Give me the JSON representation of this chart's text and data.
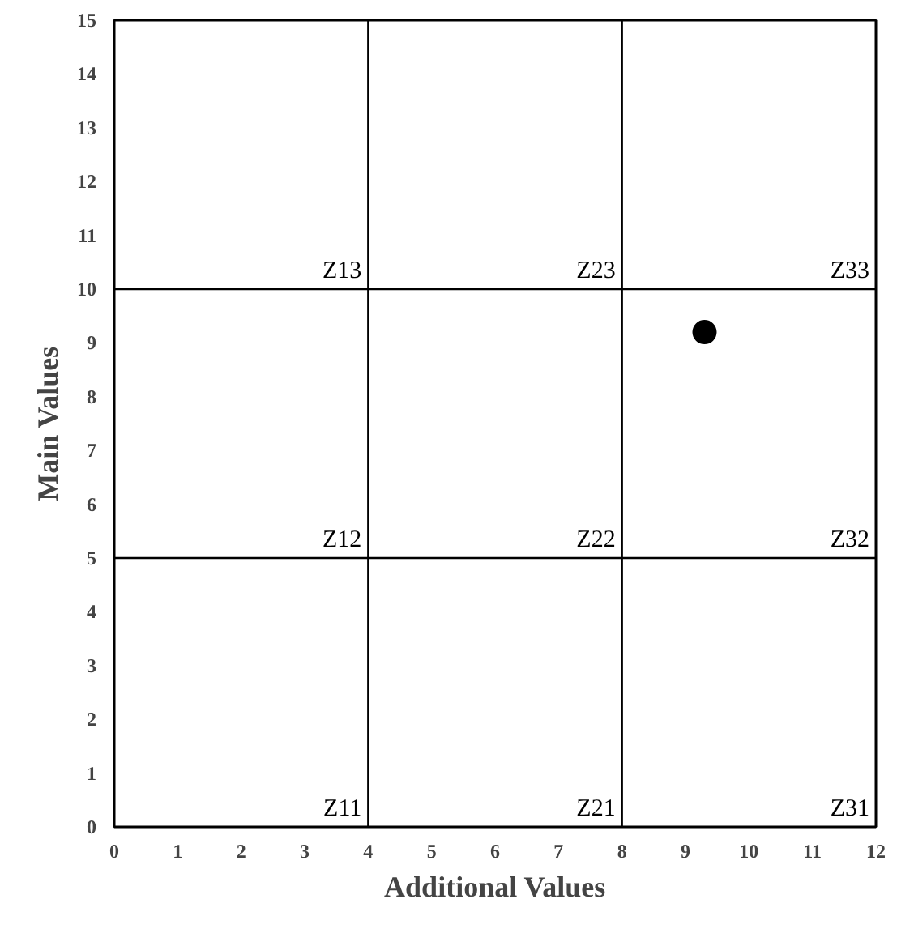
{
  "chart_data": {
    "type": "scatter",
    "xlabel": "Additional Values",
    "ylabel": "Main Values",
    "x": [
      9.3
    ],
    "values": [
      9.2
    ],
    "color": "#000000",
    "marker": "circle",
    "xlim": [
      0,
      12
    ],
    "ylim": [
      0,
      15
    ],
    "xticks": [
      0,
      1,
      2,
      3,
      4,
      5,
      6,
      7,
      8,
      9,
      10,
      11,
      12
    ],
    "yticks": [
      0,
      1,
      2,
      3,
      4,
      5,
      6,
      7,
      8,
      9,
      10,
      11,
      12,
      13,
      14,
      15
    ],
    "grid": false,
    "ref_lines": [
      {
        "axis": "x",
        "value": 4,
        "color": "#000000"
      },
      {
        "axis": "x",
        "value": 8,
        "color": "#000000"
      },
      {
        "axis": "y",
        "value": 5,
        "color": "#000000"
      },
      {
        "axis": "y",
        "value": 10,
        "color": "#000000"
      }
    ],
    "annotations": [
      "Z11",
      "Z12",
      "Z13",
      "Z21",
      "Z22",
      "Z23",
      "Z31",
      "Z32",
      "Z33"
    ]
  }
}
